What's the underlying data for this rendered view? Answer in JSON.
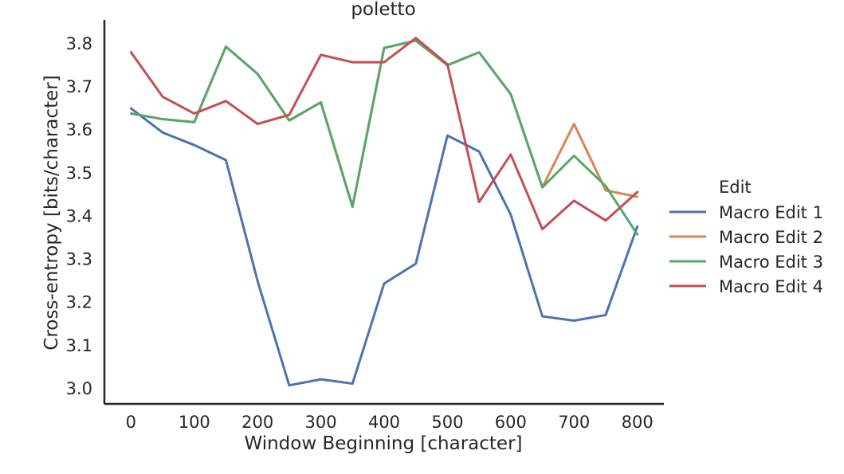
{
  "chart_data": {
    "type": "line",
    "title": "poletto",
    "xlabel": "Window Beginning [character]",
    "ylabel": "Cross-entropy [bits/character]",
    "xlim": [
      -42,
      842
    ],
    "ylim": [
      2.965,
      3.855
    ],
    "xticks": [
      0,
      100,
      200,
      300,
      400,
      500,
      600,
      700,
      800
    ],
    "yticks": [
      3.0,
      3.1,
      3.2,
      3.3,
      3.4,
      3.5,
      3.6,
      3.7,
      3.8
    ],
    "ytick_labels": [
      "3.0",
      "3.1",
      "3.2",
      "3.3",
      "3.4",
      "3.5",
      "3.6",
      "3.7",
      "3.8"
    ],
    "grid": false,
    "legend_title": "Edit",
    "legend_position": "right",
    "x": [
      0,
      50,
      100,
      150,
      200,
      250,
      300,
      350,
      400,
      450,
      500,
      550,
      600,
      650,
      700,
      750,
      800
    ],
    "series": [
      {
        "name": "Macro Edit 1",
        "color": "#4c72b0",
        "values": [
          3.65,
          3.594,
          3.565,
          3.53,
          3.25,
          3.008,
          3.022,
          3.012,
          3.244,
          3.29,
          3.587,
          3.55,
          3.404,
          3.168,
          3.158,
          3.171,
          3.376
        ]
      },
      {
        "name": "Macro Edit 2",
        "color": "#dd8452",
        "values": [
          3.638,
          3.625,
          3.618,
          3.793,
          3.73,
          3.622,
          3.664,
          3.422,
          3.79,
          3.807,
          3.75,
          3.78,
          3.683,
          3.467,
          3.614,
          3.46,
          3.445
        ]
      },
      {
        "name": "Macro Edit 3",
        "color": "#55a868",
        "values": [
          3.638,
          3.625,
          3.618,
          3.793,
          3.73,
          3.622,
          3.664,
          3.422,
          3.79,
          3.807,
          3.75,
          3.78,
          3.683,
          3.467,
          3.54,
          3.47,
          3.358
        ]
      },
      {
        "name": "Macro Edit 4",
        "color": "#c44e52",
        "values": [
          3.78,
          3.677,
          3.638,
          3.667,
          3.614,
          3.635,
          3.774,
          3.757,
          3.757,
          3.813,
          3.752,
          3.433,
          3.543,
          3.37,
          3.436,
          3.39,
          3.456
        ]
      }
    ]
  }
}
